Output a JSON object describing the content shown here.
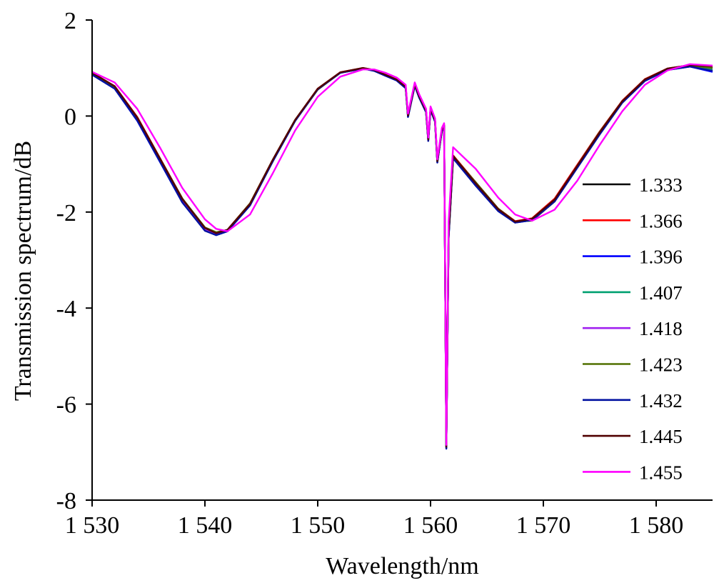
{
  "chart_data": {
    "type": "line",
    "xlabel": "Wavelength/nm",
    "ylabel": "Transmission spectrum/dB",
    "xlim": [
      1530,
      1585
    ],
    "ylim": [
      -8,
      2
    ],
    "x_ticks": [
      1530,
      1540,
      1550,
      1560,
      1570,
      1580
    ],
    "x_tick_labels": [
      "1 530",
      "1 540",
      "1 550",
      "1 560",
      "1 570",
      "1 580"
    ],
    "y_ticks": [
      2,
      0,
      -2,
      -4,
      -6,
      -8
    ],
    "y_tick_labels": [
      "2",
      "0",
      "-2",
      "-4",
      "-6",
      "-8"
    ],
    "grid": false,
    "legend_position": "right",
    "x": [
      1530,
      1532,
      1534,
      1536,
      1538,
      1540,
      1541,
      1542,
      1544,
      1546,
      1548,
      1550,
      1552,
      1554,
      1555,
      1556,
      1557,
      1557.8,
      1558,
      1558.6,
      1559,
      1559.6,
      1559.8,
      1560,
      1560.4,
      1560.6,
      1561,
      1561.2,
      1561.4,
      1561.6,
      1562,
      1564,
      1566,
      1567.5,
      1569,
      1571,
      1573,
      1575,
      1577,
      1579,
      1581,
      1583,
      1585
    ],
    "series": [
      {
        "name": "1.333",
        "color": "#000000",
        "values": [
          0.88,
          0.6,
          -0.05,
          -0.9,
          -1.75,
          -2.35,
          -2.45,
          -2.38,
          -1.85,
          -0.95,
          -0.1,
          0.55,
          0.9,
          1.0,
          0.95,
          0.85,
          0.75,
          0.6,
          0.0,
          0.65,
          0.4,
          0.1,
          -0.5,
          0.15,
          -0.1,
          -0.95,
          -0.3,
          -0.2,
          -6.9,
          -2.5,
          -0.85,
          -1.4,
          -1.95,
          -2.2,
          -2.15,
          -1.75,
          -1.05,
          -0.35,
          0.3,
          0.75,
          0.98,
          1.05,
          1.0
        ]
      },
      {
        "name": "1.366",
        "color": "#ff0000",
        "values": [
          0.9,
          0.62,
          -0.02,
          -0.87,
          -1.72,
          -2.33,
          -2.44,
          -2.37,
          -1.82,
          -0.92,
          -0.08,
          0.57,
          0.91,
          1.0,
          0.96,
          0.86,
          0.76,
          0.61,
          0.02,
          0.66,
          0.41,
          0.12,
          -0.48,
          0.16,
          -0.08,
          -0.93,
          -0.28,
          -0.18,
          -6.88,
          -2.45,
          -0.82,
          -1.38,
          -1.93,
          -2.19,
          -2.13,
          -1.72,
          -1.02,
          -0.32,
          0.32,
          0.77,
          0.99,
          1.06,
          1.01
        ]
      },
      {
        "name": "1.396",
        "color": "#0000ff",
        "values": [
          0.86,
          0.57,
          -0.1,
          -0.95,
          -1.8,
          -2.38,
          -2.48,
          -2.4,
          -1.86,
          -0.95,
          -0.1,
          0.56,
          0.9,
          0.99,
          0.94,
          0.84,
          0.74,
          0.58,
          -0.02,
          0.63,
          0.38,
          0.08,
          -0.52,
          0.13,
          -0.12,
          -0.97,
          -0.32,
          -0.22,
          -6.92,
          -2.55,
          -0.88,
          -1.45,
          -1.98,
          -2.22,
          -2.17,
          -1.78,
          -1.08,
          -0.38,
          0.28,
          0.73,
          0.96,
          1.03,
          0.92
        ]
      },
      {
        "name": "1.407",
        "color": "#00a070",
        "values": [
          0.87,
          0.59,
          -0.07,
          -0.92,
          -1.78,
          -2.37,
          -2.46,
          -2.39,
          -1.85,
          -0.94,
          -0.09,
          0.56,
          0.9,
          0.99,
          0.95,
          0.85,
          0.75,
          0.59,
          -0.01,
          0.64,
          0.39,
          0.09,
          -0.5,
          0.14,
          -0.11,
          -0.96,
          -0.31,
          -0.21,
          -6.91,
          -2.52,
          -0.86,
          -1.43,
          -1.97,
          -2.21,
          -2.16,
          -1.77,
          -1.07,
          -0.37,
          0.29,
          0.74,
          0.97,
          1.04,
          0.96
        ]
      },
      {
        "name": "1.418",
        "color": "#a020f0",
        "values": [
          0.88,
          0.6,
          -0.05,
          -0.9,
          -1.76,
          -2.36,
          -2.45,
          -2.38,
          -1.84,
          -0.93,
          -0.09,
          0.56,
          0.9,
          0.99,
          0.95,
          0.85,
          0.75,
          0.6,
          0.0,
          0.65,
          0.4,
          0.1,
          -0.5,
          0.15,
          -0.1,
          -0.95,
          -0.3,
          -0.2,
          -6.9,
          -2.5,
          -0.85,
          -1.42,
          -1.96,
          -2.2,
          -2.15,
          -1.76,
          -1.06,
          -0.36,
          0.3,
          0.75,
          0.98,
          1.05,
          1.0
        ]
      },
      {
        "name": "1.423",
        "color": "#507000",
        "values": [
          0.87,
          0.6,
          -0.04,
          -0.88,
          -1.72,
          -2.32,
          -2.42,
          -2.37,
          -1.82,
          -0.92,
          -0.08,
          0.56,
          0.9,
          0.99,
          0.95,
          0.85,
          0.75,
          0.6,
          0.0,
          0.65,
          0.4,
          0.1,
          -0.5,
          0.15,
          -0.1,
          -0.95,
          -0.3,
          -0.2,
          -6.9,
          -2.5,
          -0.84,
          -1.38,
          -1.93,
          -2.2,
          -2.18,
          -1.78,
          -1.04,
          -0.33,
          0.31,
          0.76,
          0.98,
          1.05,
          1.0
        ]
      },
      {
        "name": "1.432",
        "color": "#0010a0",
        "values": [
          0.86,
          0.57,
          -0.09,
          -0.94,
          -1.8,
          -2.39,
          -2.48,
          -2.4,
          -1.86,
          -0.95,
          -0.1,
          0.56,
          0.9,
          0.99,
          0.94,
          0.84,
          0.74,
          0.58,
          -0.02,
          0.63,
          0.38,
          0.08,
          -0.52,
          0.13,
          -0.12,
          -0.97,
          -0.32,
          -0.22,
          -6.93,
          -2.55,
          -0.88,
          -1.45,
          -1.98,
          -2.22,
          -2.17,
          -1.78,
          -1.08,
          -0.38,
          0.28,
          0.73,
          0.96,
          1.03,
          0.94
        ]
      },
      {
        "name": "1.445",
        "color": "#500000",
        "values": [
          0.9,
          0.62,
          -0.03,
          -0.88,
          -1.73,
          -2.33,
          -2.44,
          -2.37,
          -1.83,
          -0.92,
          -0.08,
          0.57,
          0.91,
          1.0,
          0.96,
          0.86,
          0.76,
          0.61,
          0.01,
          0.66,
          0.41,
          0.11,
          -0.49,
          0.16,
          -0.09,
          -0.94,
          -0.29,
          -0.19,
          -6.89,
          -2.48,
          -0.83,
          -1.4,
          -1.94,
          -2.2,
          -2.14,
          -1.74,
          -1.04,
          -0.34,
          0.31,
          0.76,
          0.99,
          1.06,
          1.04
        ]
      },
      {
        "name": "1.455",
        "color": "#ff00ff",
        "values": [
          0.92,
          0.7,
          0.15,
          -0.65,
          -1.5,
          -2.15,
          -2.35,
          -2.4,
          -2.05,
          -1.2,
          -0.3,
          0.4,
          0.82,
          0.97,
          0.97,
          0.9,
          0.8,
          0.65,
          0.05,
          0.7,
          0.45,
          0.15,
          -0.45,
          0.2,
          -0.05,
          -0.9,
          -0.25,
          -0.15,
          -6.85,
          -2.2,
          -0.65,
          -1.1,
          -1.7,
          -2.05,
          -2.18,
          -1.95,
          -1.35,
          -0.6,
          0.1,
          0.65,
          0.95,
          1.08,
          1.05
        ]
      }
    ]
  }
}
